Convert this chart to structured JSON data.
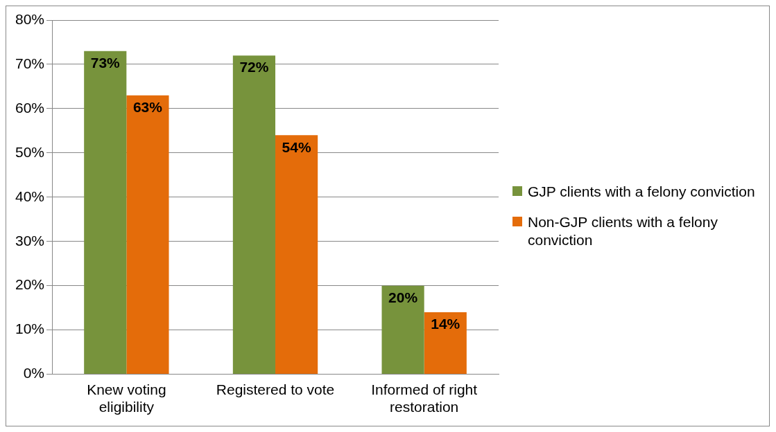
{
  "chart_data": {
    "type": "bar",
    "categories": [
      "Knew voting eligibility",
      "Registered to vote",
      "Informed of right restoration"
    ],
    "series": [
      {
        "name": "GJP clients with a felony conviction",
        "color": "#77933c",
        "values": [
          73,
          72,
          20
        ],
        "value_labels": [
          "73%",
          "72%",
          "20%"
        ]
      },
      {
        "name": "Non-GJP clients with a felony conviction",
        "color": "#e46c0a",
        "values": [
          63,
          54,
          14
        ],
        "value_labels": [
          "63%",
          "54%",
          "14%"
        ]
      }
    ],
    "ylim": [
      0,
      80
    ],
    "yticks": [
      {
        "value": 0,
        "label": "0%"
      },
      {
        "value": 10,
        "label": "10%"
      },
      {
        "value": 20,
        "label": "20%"
      },
      {
        "value": 30,
        "label": "30%"
      },
      {
        "value": 40,
        "label": "40%"
      },
      {
        "value": 50,
        "label": "50%"
      },
      {
        "value": 60,
        "label": "60%"
      },
      {
        "value": 70,
        "label": "70%"
      },
      {
        "value": 80,
        "label": "80%"
      }
    ],
    "grid": "y",
    "legend": "right"
  }
}
